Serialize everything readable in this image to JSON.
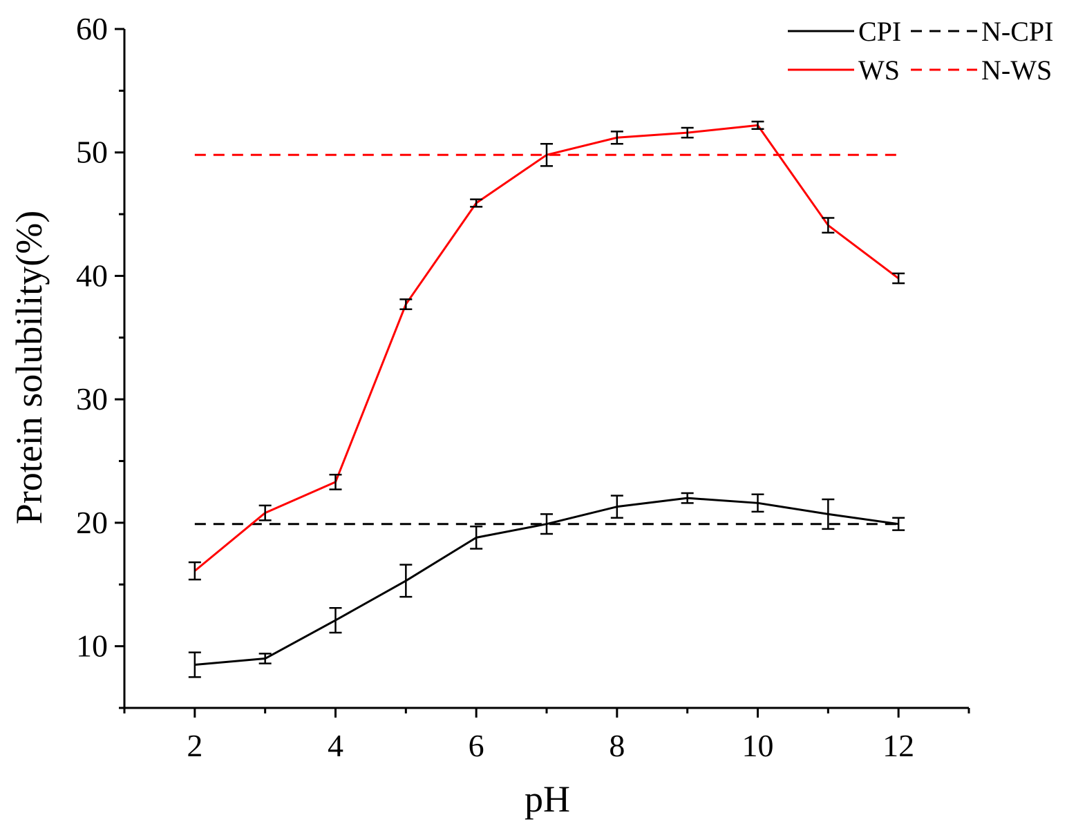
{
  "chart_data": {
    "type": "line",
    "title": "",
    "xlabel": "pH",
    "ylabel": "Protein solubility(%)",
    "xlim": [
      1,
      13
    ],
    "ylim": [
      5,
      60
    ],
    "xticks": [
      2,
      4,
      6,
      8,
      10,
      12
    ],
    "yticks": [
      10,
      20,
      30,
      40,
      50,
      60
    ],
    "legend_position": "top-right",
    "colors": {
      "black": "#000000",
      "red": "#ff0000"
    },
    "x": [
      2,
      3,
      4,
      5,
      6,
      7,
      8,
      9,
      10,
      11,
      12
    ],
    "series": [
      {
        "name": "CPI",
        "style": "solid",
        "color": "#000000",
        "values": [
          8.5,
          9.0,
          12.1,
          15.3,
          18.8,
          19.9,
          21.3,
          22.0,
          21.6,
          20.7,
          19.9
        ],
        "errors": [
          1.0,
          0.4,
          1.0,
          1.3,
          0.9,
          0.8,
          0.9,
          0.4,
          0.7,
          1.2,
          0.5
        ]
      },
      {
        "name": "N-CPI",
        "style": "dashed",
        "color": "#000000",
        "values": [
          19.9,
          19.9,
          19.9,
          19.9,
          19.9,
          19.9,
          19.9,
          19.9,
          19.9,
          19.9,
          19.9
        ]
      },
      {
        "name": "WS",
        "style": "solid",
        "color": "#ff0000",
        "values": [
          16.1,
          20.8,
          23.3,
          37.7,
          45.9,
          49.8,
          51.2,
          51.6,
          52.2,
          44.1,
          39.8
        ],
        "errors": [
          0.7,
          0.6,
          0.6,
          0.4,
          0.3,
          0.9,
          0.5,
          0.4,
          0.3,
          0.6,
          0.4
        ]
      },
      {
        "name": "N-WS",
        "style": "dashed",
        "color": "#ff0000",
        "values": [
          49.8,
          49.8,
          49.8,
          49.8,
          49.8,
          49.8,
          49.8,
          49.8,
          49.8,
          49.8,
          49.8
        ]
      }
    ]
  }
}
